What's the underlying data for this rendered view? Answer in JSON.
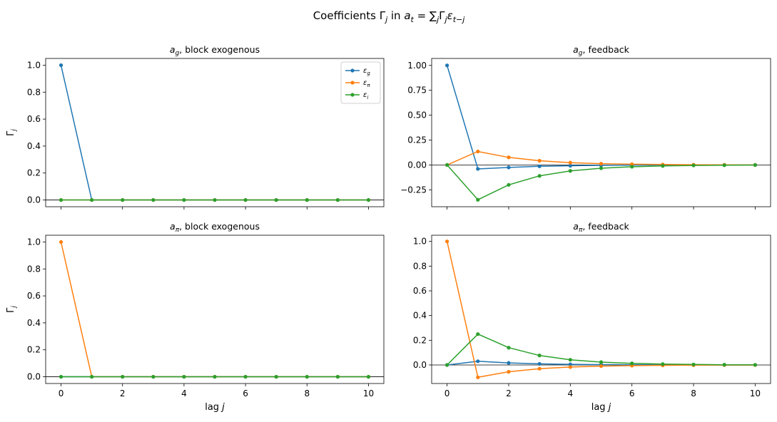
{
  "figure": {
    "title_prefix": "Coefficients Γ",
    "title_sub_j": "j",
    "title_mid": " in ",
    "title_a": "a",
    "title_sub_t": "t",
    "title_eq": " = ∑",
    "title_sum_sub": "j",
    "title_gamma": "Γ",
    "title_gamma_sub": "j",
    "title_eps": "ε",
    "title_eps_sub": "t−j"
  },
  "colors": {
    "eps_g": "#1f77b4",
    "eps_pi": "#ff7f0e",
    "eps_i": "#2ca02c"
  },
  "legend": {
    "placement": "upper right of top-left panel",
    "entries": [
      {
        "sym": "ε",
        "sub": "g"
      },
      {
        "sym": "ε",
        "sub": "π"
      },
      {
        "sym": "ε",
        "sub": "i"
      }
    ]
  },
  "chart_data": [
    {
      "type": "line",
      "panel": "top-left",
      "title_var": "a",
      "title_sub": "g",
      "title_rest": ", block exogenous",
      "ylabel_sym": "Γ",
      "ylabel_sub": "j",
      "xlabel": "",
      "x": [
        0,
        1,
        2,
        3,
        4,
        5,
        6,
        7,
        8,
        9,
        10
      ],
      "xlim": [
        -0.5,
        10.5
      ],
      "ylim": [
        -0.05,
        1.05
      ],
      "xticks": [
        0,
        2,
        4,
        6,
        8,
        10
      ],
      "xtick_labels": [],
      "yticks": [
        0,
        0.2,
        0.4,
        0.6,
        0.8,
        1.0
      ],
      "ytick_labels": [
        "0.0",
        "0.2",
        "0.4",
        "0.6",
        "0.8",
        "1.0"
      ],
      "zero_line": true,
      "series": [
        {
          "key": "eps_g",
          "values": [
            1,
            0,
            0,
            0,
            0,
            0,
            0,
            0,
            0,
            0,
            0
          ]
        },
        {
          "key": "eps_pi",
          "values": [
            0,
            0,
            0,
            0,
            0,
            0,
            0,
            0,
            0,
            0,
            0
          ]
        },
        {
          "key": "eps_i",
          "values": [
            0,
            0,
            0,
            0,
            0,
            0,
            0,
            0,
            0,
            0,
            0
          ]
        }
      ]
    },
    {
      "type": "line",
      "panel": "top-right",
      "title_var": "a",
      "title_sub": "g",
      "title_rest": ", feedback",
      "ylabel_sym": "",
      "ylabel_sub": "",
      "xlabel": "",
      "x": [
        0,
        1,
        2,
        3,
        4,
        5,
        6,
        7,
        8,
        9,
        10
      ],
      "xlim": [
        -0.5,
        10.5
      ],
      "ylim": [
        -0.42,
        1.07
      ],
      "xticks": [
        0,
        2,
        4,
        6,
        8,
        10
      ],
      "xtick_labels": [],
      "yticks": [
        -0.25,
        0,
        0.25,
        0.5,
        0.75,
        1.0
      ],
      "ytick_labels": [
        "−0.25",
        "0.00",
        "0.25",
        "0.50",
        "0.75",
        "1.00"
      ],
      "zero_line": true,
      "series": [
        {
          "key": "eps_g",
          "values": [
            1.0,
            -0.04,
            -0.025,
            -0.014,
            -0.008,
            -0.004,
            -0.002,
            -0.001,
            0,
            0,
            0
          ]
        },
        {
          "key": "eps_pi",
          "values": [
            0,
            0.135,
            0.076,
            0.042,
            0.023,
            0.013,
            0.007,
            0.004,
            0.002,
            0.001,
            0
          ]
        },
        {
          "key": "eps_i",
          "values": [
            0,
            -0.35,
            -0.2,
            -0.11,
            -0.06,
            -0.033,
            -0.018,
            -0.01,
            -0.005,
            -0.003,
            -0.001
          ]
        }
      ]
    },
    {
      "type": "line",
      "panel": "bottom-left",
      "title_var": "a",
      "title_sub": "π",
      "title_rest": ", block exogenous",
      "ylabel_sym": "Γ",
      "ylabel_sub": "j",
      "xlabel": "lag ",
      "xlabel_var": "j",
      "x": [
        0,
        1,
        2,
        3,
        4,
        5,
        6,
        7,
        8,
        9,
        10
      ],
      "xlim": [
        -0.5,
        10.5
      ],
      "ylim": [
        -0.05,
        1.05
      ],
      "xticks": [
        0,
        2,
        4,
        6,
        8,
        10
      ],
      "xtick_labels": [
        "0",
        "2",
        "4",
        "6",
        "8",
        "10"
      ],
      "yticks": [
        0,
        0.2,
        0.4,
        0.6,
        0.8,
        1.0
      ],
      "ytick_labels": [
        "0.0",
        "0.2",
        "0.4",
        "0.6",
        "0.8",
        "1.0"
      ],
      "zero_line": true,
      "series": [
        {
          "key": "eps_g",
          "values": [
            0,
            0,
            0,
            0,
            0,
            0,
            0,
            0,
            0,
            0,
            0
          ]
        },
        {
          "key": "eps_pi",
          "values": [
            1,
            0,
            0,
            0,
            0,
            0,
            0,
            0,
            0,
            0,
            0
          ]
        },
        {
          "key": "eps_i",
          "values": [
            0,
            0,
            0,
            0,
            0,
            0,
            0,
            0,
            0,
            0,
            0
          ]
        }
      ]
    },
    {
      "type": "line",
      "panel": "bottom-right",
      "title_var": "a",
      "title_sub": "π",
      "title_rest": ", feedback",
      "ylabel_sym": "",
      "ylabel_sub": "",
      "xlabel": "lag ",
      "xlabel_var": "j",
      "x": [
        0,
        1,
        2,
        3,
        4,
        5,
        6,
        7,
        8,
        9,
        10
      ],
      "xlim": [
        -0.5,
        10.5
      ],
      "ylim": [
        -0.15,
        1.05
      ],
      "xticks": [
        0,
        2,
        4,
        6,
        8,
        10
      ],
      "xtick_labels": [
        "0",
        "2",
        "4",
        "6",
        "8",
        "10"
      ],
      "yticks": [
        0,
        0.2,
        0.4,
        0.6,
        0.8,
        1.0
      ],
      "ytick_labels": [
        "0.0",
        "0.2",
        "0.4",
        "0.6",
        "0.8",
        "1.0"
      ],
      "zero_line": true,
      "series": [
        {
          "key": "eps_g",
          "values": [
            0,
            0.03,
            0.017,
            0.009,
            0.005,
            0.003,
            0.0015,
            0.0008,
            0.0004,
            0.0002,
            0.0001
          ]
        },
        {
          "key": "eps_pi",
          "values": [
            1.0,
            -0.1,
            -0.055,
            -0.03,
            -0.017,
            -0.009,
            -0.005,
            -0.003,
            -0.0015,
            -0.0008,
            -0.0004
          ]
        },
        {
          "key": "eps_i",
          "values": [
            0,
            0.25,
            0.14,
            0.077,
            0.042,
            0.023,
            0.013,
            0.007,
            0.004,
            0.002,
            0.001
          ]
        }
      ]
    }
  ]
}
